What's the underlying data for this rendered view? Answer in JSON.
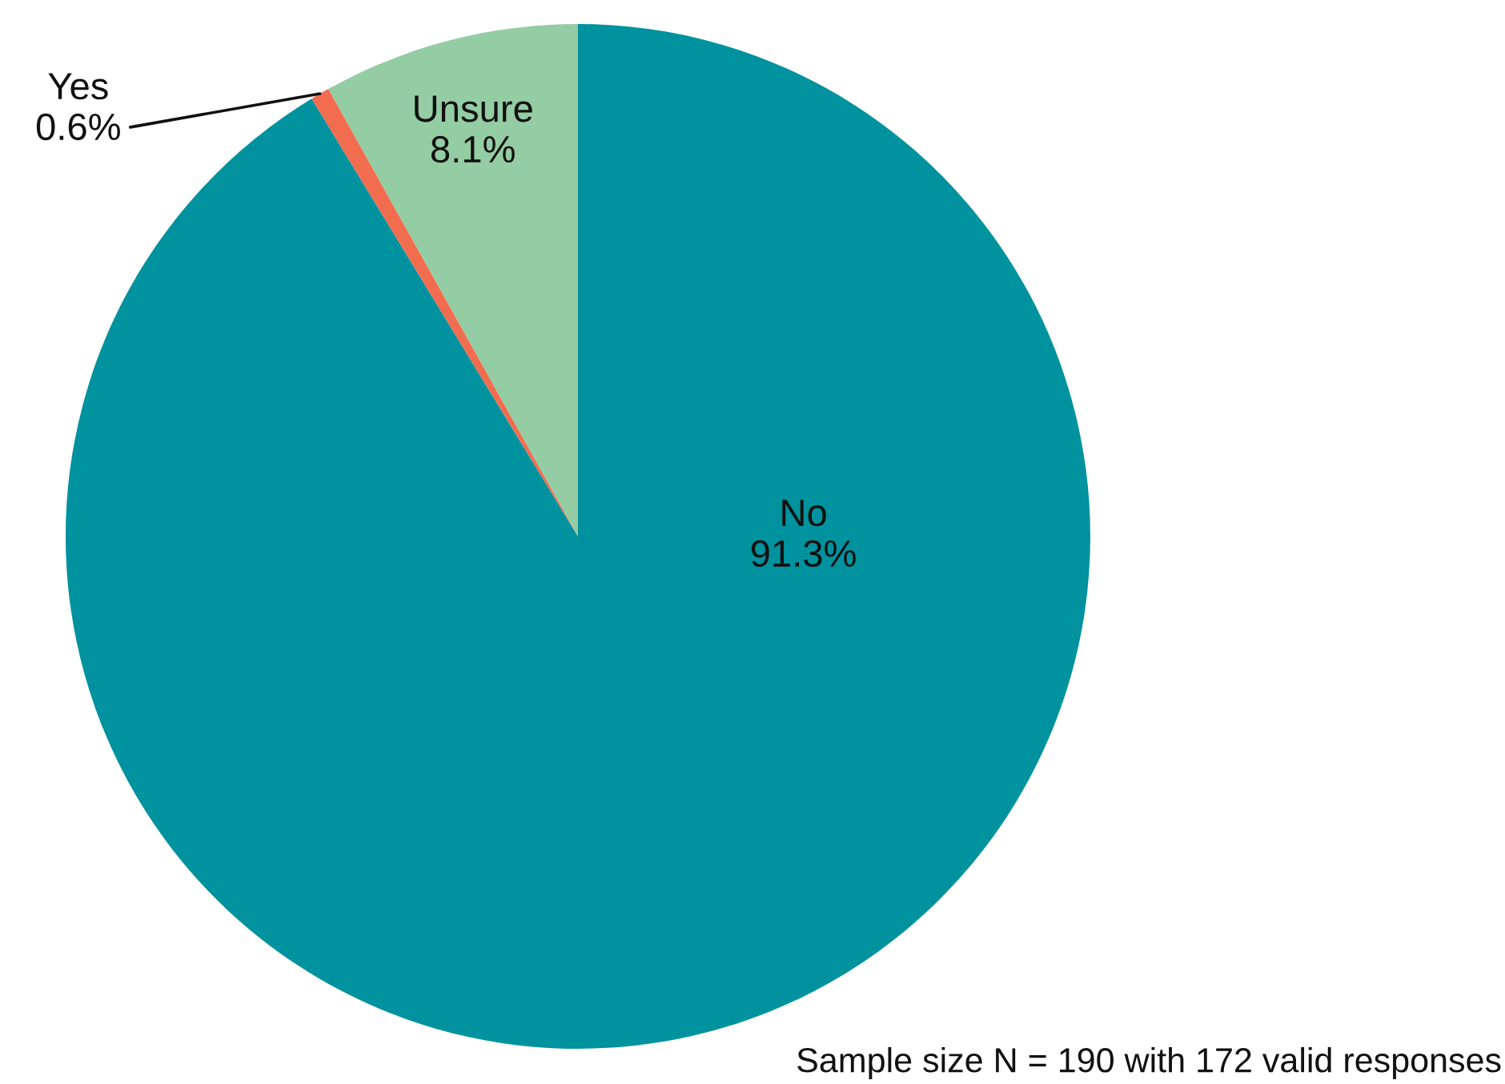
{
  "chart_data": {
    "type": "pie",
    "categories": [
      "No",
      "Yes",
      "Unsure"
    ],
    "values": [
      91.3,
      0.6,
      8.1
    ],
    "value_labels": [
      "91.3%",
      "0.6%",
      "8.1%"
    ],
    "colors": [
      "#00929e",
      "#f26d50",
      "#94cca3"
    ],
    "legend": false,
    "annotations": [
      "Sample size N = 190 with 172 valid responses"
    ]
  }
}
